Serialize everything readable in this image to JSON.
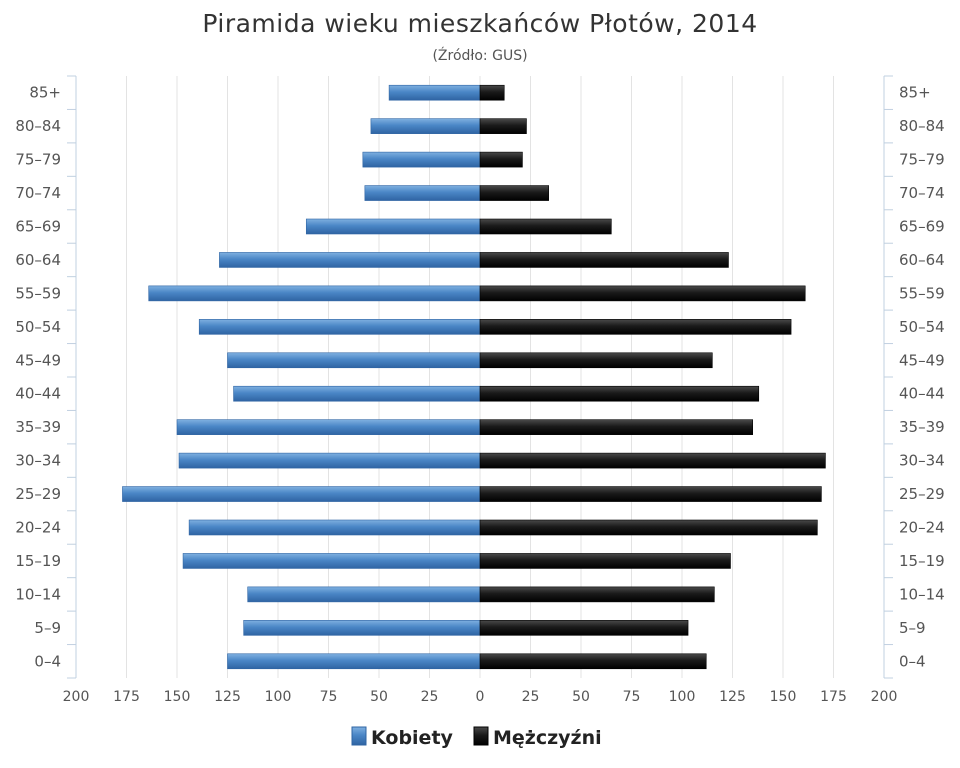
{
  "chart_data": {
    "type": "bar",
    "orientation": "horizontal",
    "title": "Piramida wieku mieszkańców Płotów, 2014",
    "subtitle": "(Źródło: GUS)",
    "categories": [
      "0–4",
      "5–9",
      "10–14",
      "15–19",
      "20–24",
      "25–29",
      "30–34",
      "35–39",
      "40–44",
      "45–49",
      "50–54",
      "55–59",
      "60–64",
      "65–69",
      "70–74",
      "75–79",
      "80–84",
      "85+"
    ],
    "x_ticks": [
      "200",
      "175",
      "150",
      "125",
      "100",
      "75",
      "50",
      "25",
      "0",
      "25",
      "50",
      "75",
      "100",
      "125",
      "150",
      "175",
      "200"
    ],
    "xlim": [
      -200,
      200
    ],
    "grid": true,
    "legend_position": "bottom-center",
    "series": [
      {
        "name": "Kobiety",
        "color": "#4a86c6",
        "values": [
          125,
          117,
          115,
          147,
          144,
          177,
          149,
          150,
          122,
          125,
          139,
          164,
          129,
          86,
          57,
          58,
          54,
          45
        ]
      },
      {
        "name": "Mężczyźni",
        "color": "#1a1a1a",
        "values": [
          112,
          103,
          116,
          124,
          167,
          169,
          171,
          135,
          138,
          115,
          154,
          161,
          123,
          65,
          34,
          21,
          23,
          12
        ]
      }
    ]
  }
}
